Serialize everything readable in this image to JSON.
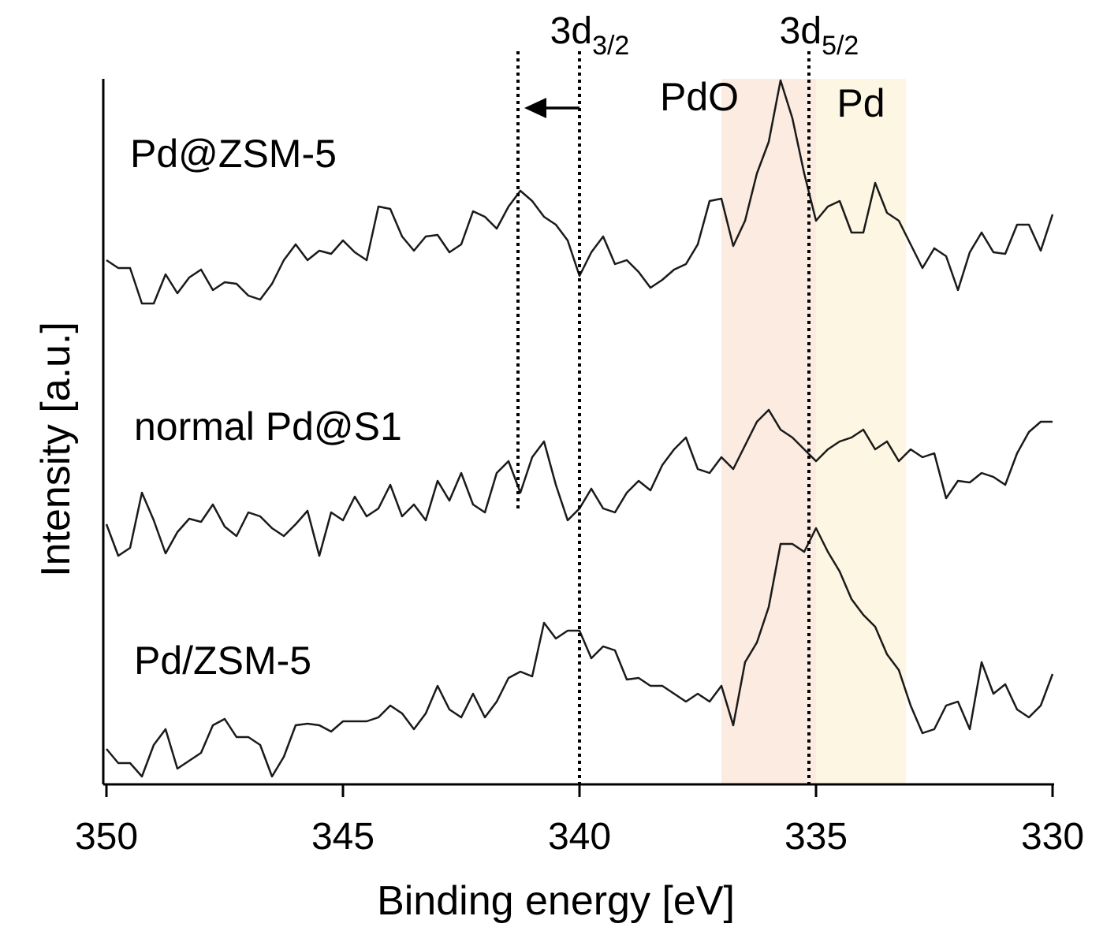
{
  "chart_data": {
    "type": "line",
    "xlabel": "Binding energy [eV]",
    "ylabel": "Intensity [a.u.]",
    "xlim": [
      350,
      330
    ],
    "xticks": [
      350,
      345,
      340,
      335,
      330
    ],
    "ylim": [
      0,
      895
    ],
    "x": [
      350,
      349.75,
      349.5,
      349.25,
      349,
      348.75,
      348.5,
      348.25,
      348,
      347.75,
      347.5,
      347.25,
      347,
      346.75,
      346.5,
      346.25,
      346,
      345.75,
      345.5,
      345.25,
      345,
      344.75,
      344.5,
      344.25,
      344,
      343.75,
      343.5,
      343.25,
      343,
      342.75,
      342.5,
      342.25,
      342,
      341.75,
      341.5,
      341.25,
      341,
      340.75,
      340.5,
      340.25,
      340,
      339.75,
      339.5,
      339.25,
      339,
      338.75,
      338.5,
      338.25,
      338,
      337.75,
      337.5,
      337.25,
      337,
      336.75,
      336.5,
      336.25,
      336,
      335.75,
      335.5,
      335.25,
      335,
      334.75,
      334.5,
      334.25,
      334,
      333.75,
      333.5,
      333.25,
      333,
      332.75,
      332.5,
      332.25,
      332,
      331.75,
      331.5,
      331.25,
      331,
      330.75,
      330.5,
      330.25,
      330
    ],
    "series": [
      {
        "name": "Pd@ZSM-5",
        "color": "#1a1a1a",
        "values": [
          665,
          655,
          655,
          610,
          610,
          647,
          623,
          643,
          653,
          627,
          637,
          635,
          620,
          615,
          635,
          665,
          685,
          665,
          677,
          673,
          690,
          675,
          665,
          733,
          730,
          695,
          677,
          695,
          697,
          675,
          685,
          727,
          720,
          705,
          733,
          753,
          740,
          720,
          710,
          690,
          645,
          675,
          695,
          660,
          665,
          650,
          630,
          640,
          653,
          660,
          685,
          740,
          743,
          683,
          715,
          775,
          815,
          893,
          845,
          775,
          715,
          733,
          740,
          700,
          700,
          763,
          725,
          715,
          685,
          655,
          680,
          670,
          627,
          675,
          700,
          675,
          673,
          710,
          710,
          677,
          723
        ]
      },
      {
        "name": "normal Pd@S1",
        "color": "#1a1a1a",
        "values": [
          330,
          290,
          300,
          370,
          335,
          293,
          320,
          337,
          333,
          355,
          327,
          315,
          345,
          340,
          325,
          315,
          330,
          347,
          290,
          345,
          335,
          365,
          340,
          350,
          380,
          340,
          355,
          335,
          385,
          360,
          395,
          355,
          345,
          395,
          410,
          370,
          415,
          435,
          380,
          335,
          350,
          375,
          350,
          345,
          370,
          385,
          373,
          405,
          425,
          440,
          400,
          395,
          415,
          400,
          430,
          460,
          475,
          450,
          440,
          425,
          410,
          425,
          435,
          440,
          450,
          425,
          435,
          410,
          425,
          415,
          420,
          363,
          385,
          383,
          395,
          390,
          380,
          420,
          447,
          460,
          460
        ]
      },
      {
        "name": "Pd/ZSM-5",
        "color": "#1a1a1a",
        "values": [
          45,
          27,
          27,
          10,
          50,
          70,
          20,
          30,
          40,
          75,
          83,
          60,
          60,
          50,
          10,
          35,
          75,
          77,
          75,
          67,
          80,
          80,
          80,
          85,
          100,
          90,
          70,
          90,
          125,
          95,
          85,
          115,
          85,
          105,
          135,
          143,
          137,
          205,
          185,
          195,
          195,
          160,
          175,
          170,
          133,
          135,
          125,
          125,
          115,
          105,
          115,
          105,
          125,
          75,
          155,
          180,
          225,
          305,
          305,
          295,
          325,
          295,
          270,
          235,
          215,
          200,
          165,
          145,
          100,
          65,
          70,
          100,
          105,
          70,
          155,
          115,
          127,
          95,
          85,
          100,
          140
        ]
      }
    ],
    "regions": [
      {
        "label": "PdO",
        "x0": 337,
        "x1": 335,
        "color": "#fbebe1"
      },
      {
        "label": "Pd",
        "x0": 335,
        "x1": 333.1,
        "color": "#fdf6e2"
      }
    ],
    "reference_lines": [
      {
        "x": 341.3,
        "ymin": 350
      },
      {
        "x": 340,
        "ymin": 0
      },
      {
        "x": 335.15,
        "ymin": 0
      }
    ],
    "peak_labels": [
      {
        "text": "3d",
        "sub": "3/2",
        "x": 340
      },
      {
        "text": "3d",
        "sub": "5/2",
        "x": 335.15
      }
    ],
    "arrow": {
      "from": 340,
      "to": 341.3
    }
  }
}
